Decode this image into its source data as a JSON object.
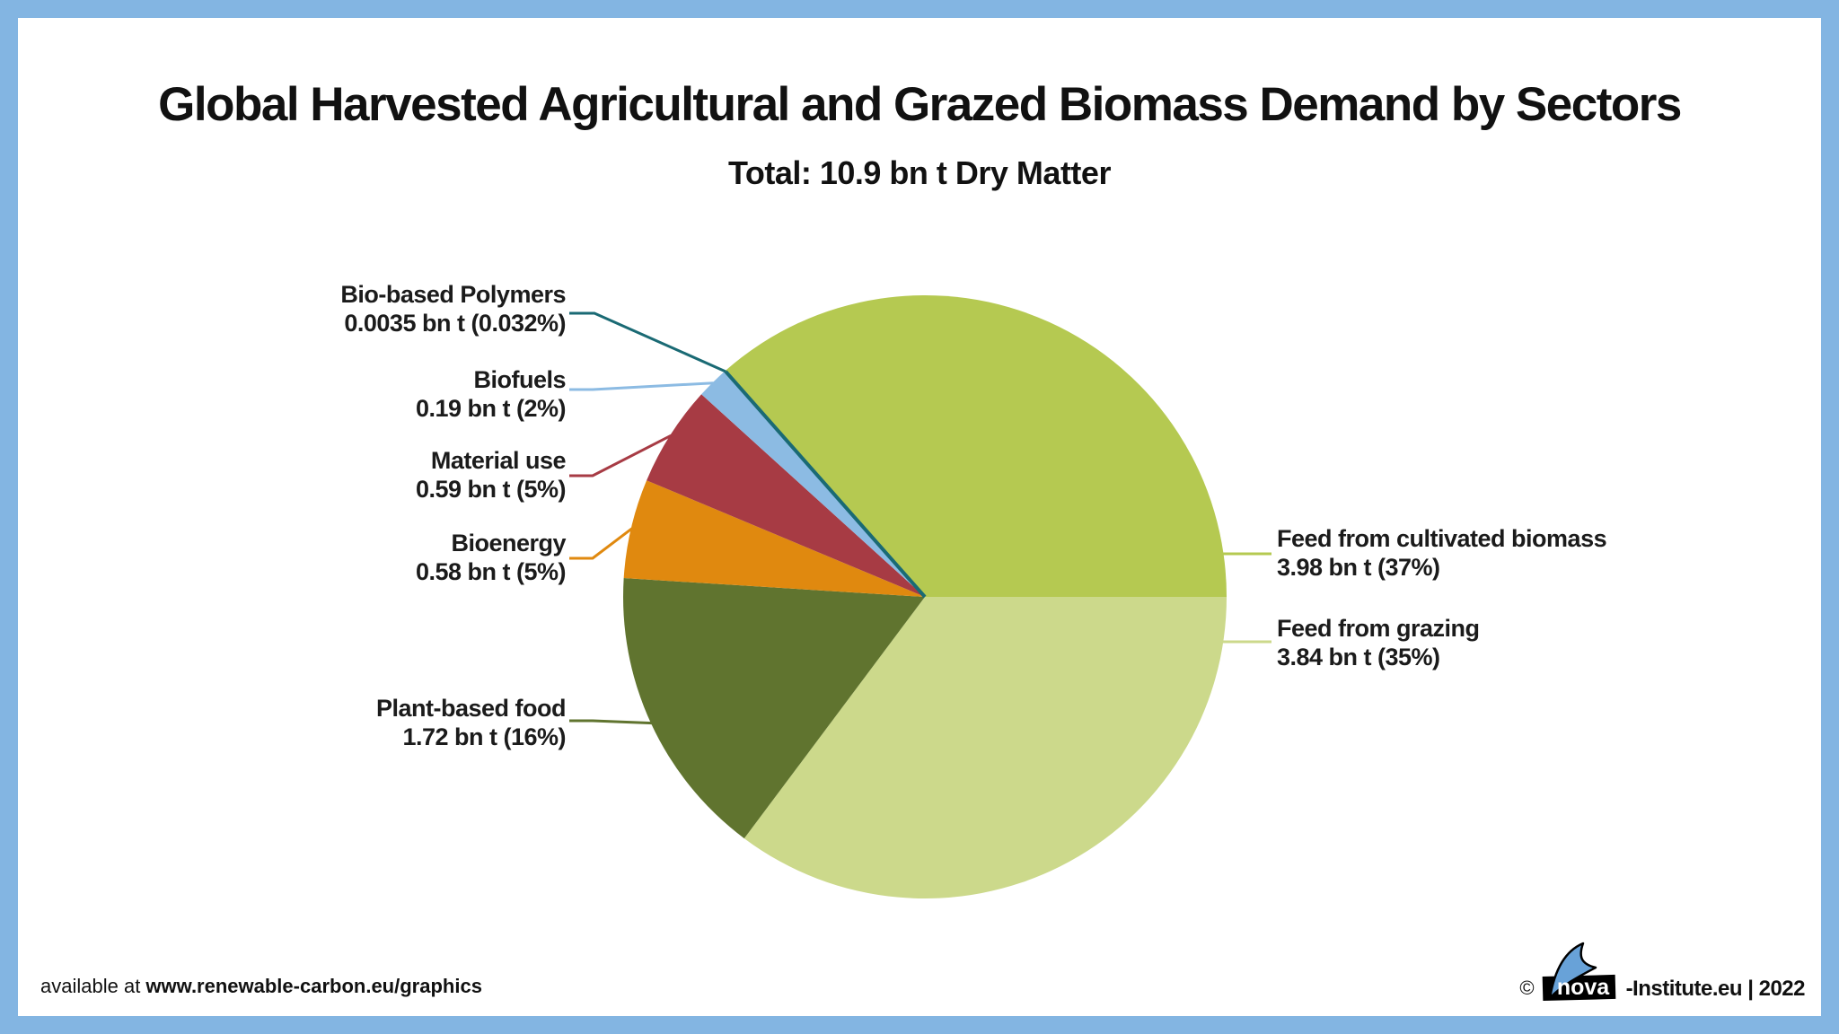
{
  "frame": {
    "border_color": "#83b5e2",
    "background_color": "#ffffff"
  },
  "header": {
    "title": "Global Harvested Agricultural and Grazed Biomass Demand by Sectors",
    "subtitle": "Total: 10.9 bn t Dry Matter"
  },
  "chart_data": {
    "type": "pie",
    "title": "Global Harvested Agricultural and Grazed Biomass Demand by Sectors",
    "subtitle": "Total: 10.9 bn t Dry Matter",
    "total": {
      "value": 10.9,
      "unit": "bn t",
      "label": "Total: 10.9 bn t Dry Matter"
    },
    "start_angle_deg_from_east": 0,
    "direction": "clockwise",
    "labels": "callout",
    "series": [
      {
        "id": "feed_grazing",
        "name": "Feed from grazing",
        "value_bn_t": 3.84,
        "percent": 35,
        "value_label": "3.84 bn t (35%)",
        "color": "#ccd98b",
        "label_side": "right"
      },
      {
        "id": "plant_based_food",
        "name": "Plant-based food",
        "value_bn_t": 1.72,
        "percent": 16,
        "value_label": "1.72 bn t (16%)",
        "color": "#60742f",
        "label_side": "left"
      },
      {
        "id": "bioenergy",
        "name": "Bioenergy",
        "value_bn_t": 0.58,
        "percent": 5,
        "value_label": "0.58 bn t (5%)",
        "color": "#e0890f",
        "label_side": "left"
      },
      {
        "id": "material_use",
        "name": "Material use",
        "value_bn_t": 0.59,
        "percent": 5,
        "value_label": "0.59 bn t (5%)",
        "color": "#a73b44",
        "label_side": "left"
      },
      {
        "id": "biofuels",
        "name": "Biofuels",
        "value_bn_t": 0.19,
        "percent": 2,
        "value_label": "0.19 bn t (2%)",
        "color": "#8cbbe3",
        "label_side": "left"
      },
      {
        "id": "bio_based_polymers",
        "name": "Bio-based Polymers",
        "value_bn_t": 0.0035,
        "percent": 0.032,
        "value_label": "0.0035 bn t (0.032%)",
        "color": "#1a6a74",
        "label_side": "left"
      },
      {
        "id": "feed_cultivated",
        "name": "Feed from cultivated biomass",
        "value_bn_t": 3.98,
        "percent": 37,
        "value_label": "3.98 bn t (37%)",
        "color": "#b5c951",
        "label_side": "right"
      }
    ]
  },
  "footer": {
    "available_prefix": "available at ",
    "available_url": "www.renewable-carbon.eu/graphics",
    "copyright": "©",
    "logo_text": "nova",
    "credit": "-Institute.eu | 2022",
    "logo_blue": "#68a2d8"
  }
}
